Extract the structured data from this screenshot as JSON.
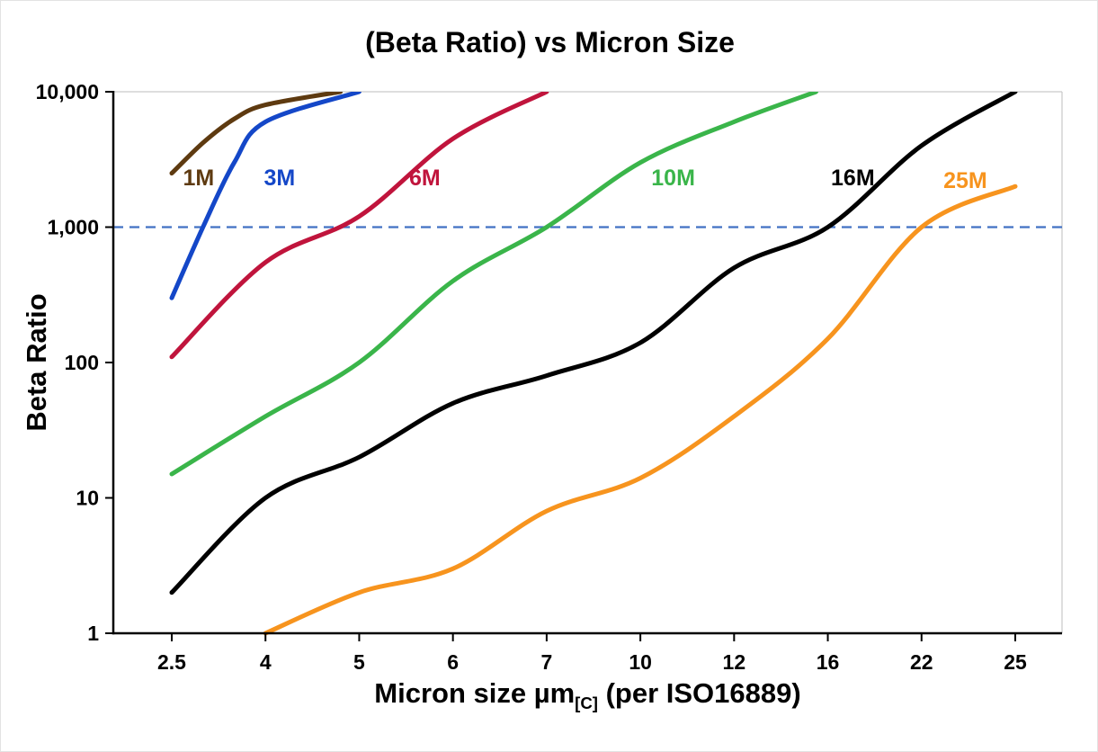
{
  "figure": {
    "title": "(Beta Ratio) vs Micron Size",
    "xlabel_main": "Micron size µm",
    "xlabel_sub": "[C]",
    "xlabel_rest": " (per ISO16889)",
    "ylabel": "Beta Ratio"
  },
  "chart_data": {
    "type": "line",
    "title": "(Beta Ratio) vs Micron Size",
    "xlabel": "Micron size µm[C] (per ISO16889)",
    "ylabel": "Beta Ratio",
    "x_scale": "categorical",
    "y_scale": "log",
    "x_ticks": [
      2.5,
      4,
      5,
      6,
      7,
      10,
      12,
      16,
      22,
      25
    ],
    "x_tick_labels": [
      "2.5",
      "4",
      "5",
      "6",
      "7",
      "10",
      "12",
      "16",
      "22",
      "25"
    ],
    "y_ticks": [
      1,
      10,
      100,
      1000,
      10000
    ],
    "y_tick_labels": [
      "1",
      "10",
      "100",
      "1,000",
      "10,000"
    ],
    "ylim": [
      1,
      10000
    ],
    "grid": false,
    "legend_position": "inline-labels",
    "reference_line": {
      "value": 1000,
      "color": "#4272c4",
      "style": "dashed"
    },
    "series": [
      {
        "name": "1M",
        "color": "#5e3a10",
        "label_at": [
          2.93,
          2300
        ],
        "points": [
          [
            2.5,
            2500
          ],
          [
            3,
            4200
          ],
          [
            3.5,
            6300
          ],
          [
            4,
            8000
          ],
          [
            4.8,
            10000
          ]
        ]
      },
      {
        "name": "3M",
        "color": "#1447c8",
        "label_at": [
          4.15,
          2300
        ],
        "points": [
          [
            2.5,
            300
          ],
          [
            3,
            1000
          ],
          [
            3.5,
            3000
          ],
          [
            4,
            6000
          ],
          [
            5,
            10000
          ]
        ]
      },
      {
        "name": "6M",
        "color": "#c0143c",
        "label_at": [
          5.7,
          2300
        ],
        "points": [
          [
            2.5,
            110
          ],
          [
            4,
            550
          ],
          [
            5,
            1200
          ],
          [
            6,
            4500
          ],
          [
            7,
            10000
          ]
        ]
      },
      {
        "name": "10M",
        "color": "#3ab54a",
        "label_at": [
          10.7,
          2300
        ],
        "points": [
          [
            2.5,
            15
          ],
          [
            4,
            40
          ],
          [
            5,
            100
          ],
          [
            6,
            400
          ],
          [
            7,
            1000
          ],
          [
            10,
            3000
          ],
          [
            12,
            6000
          ],
          [
            15.5,
            10000
          ]
        ]
      },
      {
        "name": "16M",
        "color": "#000000",
        "label_at": [
          17.6,
          2300
        ],
        "points": [
          [
            2.5,
            2
          ],
          [
            4,
            10
          ],
          [
            5,
            20
          ],
          [
            6,
            50
          ],
          [
            7,
            80
          ],
          [
            10,
            140
          ],
          [
            12,
            500
          ],
          [
            16,
            1000
          ],
          [
            22,
            4000
          ],
          [
            25,
            10000
          ]
        ]
      },
      {
        "name": "25M",
        "color": "#f7941e",
        "label_at": [
          23.4,
          2200
        ],
        "points": [
          [
            4,
            1
          ],
          [
            5,
            2
          ],
          [
            6,
            3
          ],
          [
            7,
            8
          ],
          [
            10,
            14
          ],
          [
            12,
            40
          ],
          [
            16,
            150
          ],
          [
            22,
            1000
          ],
          [
            25,
            2000
          ]
        ]
      }
    ]
  }
}
